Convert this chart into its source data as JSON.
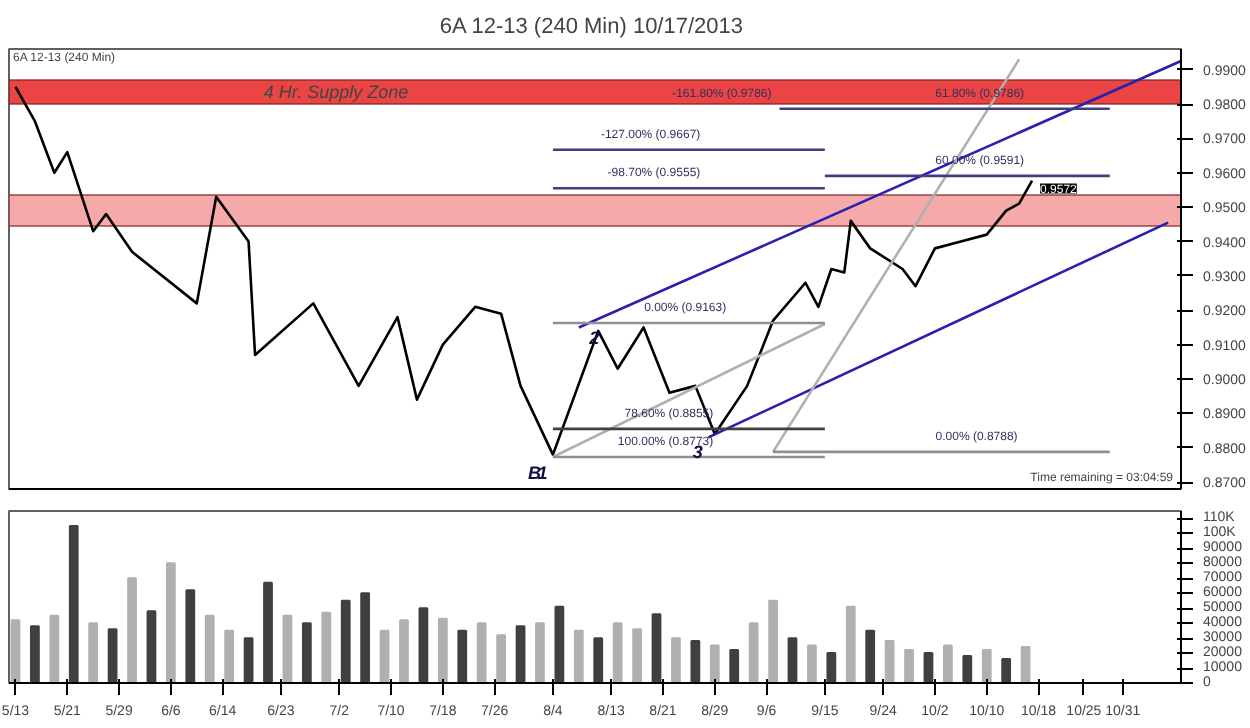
{
  "chart_data": [
    {
      "type": "line",
      "title": "6A 12-13 (240 Min)  10/17/2013",
      "xlim": [
        "2013-05-12",
        "2013-11-09"
      ],
      "ylim": [
        0.868,
        0.996
      ],
      "xticks": [
        {
          "value": "2013-05-13",
          "label": null
        },
        {
          "value": "2013-05-21",
          "label": null
        },
        {
          "value": "2013-05-29",
          "label": null
        },
        {
          "value": "2013-06-06",
          "label": null
        },
        {
          "value": "2013-06-14",
          "label": null
        },
        {
          "value": "2013-06-23",
          "label": null
        },
        {
          "value": "2013-07-02",
          "label": null
        },
        {
          "value": "2013-07-10",
          "label": null
        },
        {
          "value": "2013-07-18",
          "label": null
        },
        {
          "value": "2013-07-26",
          "label": null
        },
        {
          "value": "2013-08-04",
          "label": null
        },
        {
          "value": "2013-08-13",
          "label": null
        },
        {
          "value": "2013-08-21",
          "label": null
        },
        {
          "value": "2013-08-29",
          "label": null
        },
        {
          "value": "2013-09-06",
          "label": null
        },
        {
          "value": "2013-09-15",
          "label": null
        },
        {
          "value": "2013-09-24",
          "label": null
        },
        {
          "value": "2013-10-02",
          "label": null
        },
        {
          "value": "2013-10-10",
          "label": null
        },
        {
          "value": "2013-10-18",
          "label": null
        },
        {
          "value": "2013-10-25",
          "label": null
        },
        {
          "value": "2013-10-31",
          "label": null
        }
      ],
      "yticks": [
        {
          "value": 0.87,
          "label": "0.8700"
        },
        {
          "value": 0.88,
          "label": "0.8800"
        },
        {
          "value": 0.89,
          "label": "0.8900"
        },
        {
          "value": 0.9,
          "label": "0.9000"
        },
        {
          "value": 0.91,
          "label": "0.9100"
        },
        {
          "value": 0.92,
          "label": "0.9200"
        },
        {
          "value": 0.93,
          "label": "0.9300"
        },
        {
          "value": 0.94,
          "label": "0.9400"
        },
        {
          "value": 0.95,
          "label": "0.9500"
        },
        {
          "value": 0.96,
          "label": "0.9600"
        },
        {
          "value": 0.97,
          "label": "0.9700"
        },
        {
          "value": 0.98,
          "label": "0.9800"
        },
        {
          "value": 0.99,
          "label": "0.9900"
        }
      ],
      "tick_labels": "y",
      "bands": [
        {
          "axis": "y",
          "from": 0.98,
          "to": 0.987,
          "label": "4 Hr. Supply Zone",
          "color": "#e83030"
        },
        {
          "axis": "y",
          "from": 0.9445,
          "to": 0.9535,
          "label": null,
          "color": "#f4a0a0"
        }
      ],
      "series": [
        {
          "type": "line",
          "color": "#000000",
          "x": [
            "2013-05-13",
            "2013-05-16",
            "2013-05-19",
            "2013-05-21",
            "2013-05-25",
            "2013-05-27",
            "2013-05-31",
            "2013-06-10",
            "2013-06-13",
            "2013-06-18",
            "2013-06-19",
            "2013-06-28",
            "2013-07-05",
            "2013-07-11",
            "2013-07-14",
            "2013-07-18",
            "2013-07-23",
            "2013-07-27",
            "2013-07-30",
            "2013-08-04",
            "2013-08-11",
            "2013-08-14",
            "2013-08-18",
            "2013-08-22",
            "2013-08-26",
            "2013-08-29",
            "2013-09-03",
            "2013-09-07",
            "2013-09-12",
            "2013-09-14",
            "2013-09-16",
            "2013-09-18",
            "2013-09-19",
            "2013-09-22",
            "2013-09-27",
            "2013-09-29",
            "2013-10-02",
            "2013-10-06",
            "2013-10-10",
            "2013-10-13",
            "2013-10-15",
            "2013-10-17"
          ],
          "values": [
            0.985,
            0.975,
            0.96,
            0.966,
            0.943,
            0.948,
            0.937,
            0.922,
            0.953,
            0.94,
            0.907,
            0.922,
            0.898,
            0.918,
            0.894,
            0.91,
            0.921,
            0.919,
            0.898,
            0.878,
            0.914,
            0.903,
            0.915,
            0.896,
            0.898,
            0.884,
            0.898,
            0.917,
            0.928,
            0.921,
            0.932,
            0.931,
            0.946,
            0.938,
            0.932,
            0.927,
            0.938,
            0.94,
            0.942,
            0.949,
            0.951,
            0.9577
          ]
        },
        {
          "type": "line",
          "color": "#2a1fb0",
          "x": [
            "2013-08-08",
            "2013-11-09"
          ],
          "values": [
            0.915,
            0.9925
          ]
        },
        {
          "type": "line",
          "color": "#2a1fb0",
          "x": [
            "2013-08-28",
            "2013-11-07"
          ],
          "values": [
            0.883,
            0.9455
          ]
        },
        {
          "type": "line",
          "color": "#b0b0b0",
          "x": [
            "2013-09-07",
            "2013-10-15"
          ],
          "values": [
            0.8788,
            0.993
          ]
        },
        {
          "type": "line",
          "color": "#b0b0b0",
          "x": [
            "2013-08-04",
            "2013-09-15"
          ],
          "values": [
            0.8773,
            0.916
          ]
        },
        {
          "type": "line",
          "color": "#404080",
          "x": [
            "2013-09-08",
            "2013-10-29"
          ],
          "values": [
            0.9786,
            0.9786
          ]
        },
        {
          "type": "line",
          "color": "#404080",
          "x": [
            "2013-08-04",
            "2013-09-15"
          ],
          "values": [
            0.9667,
            0.9667
          ]
        },
        {
          "type": "line",
          "color": "#404080",
          "x": [
            "2013-08-04",
            "2013-09-15"
          ],
          "values": [
            0.9555,
            0.9555
          ]
        },
        {
          "type": "line",
          "color": "#404080",
          "x": [
            "2013-09-15",
            "2013-10-29"
          ],
          "values": [
            0.9591,
            0.9591
          ]
        },
        {
          "type": "line",
          "color": "#909090",
          "x": [
            "2013-08-04",
            "2013-09-15"
          ],
          "values": [
            0.9163,
            0.9163
          ]
        },
        {
          "type": "line",
          "color": "#404040",
          "x": [
            "2013-08-04",
            "2013-09-15"
          ],
          "values": [
            0.8855,
            0.8855
          ]
        },
        {
          "type": "line",
          "color": "#909090",
          "x": [
            "2013-08-04",
            "2013-09-15"
          ],
          "values": [
            0.8773,
            0.8773
          ]
        },
        {
          "type": "line",
          "color": "#909090",
          "x": [
            "2013-09-07",
            "2013-10-29"
          ],
          "values": [
            0.8788,
            0.8788
          ]
        }
      ],
      "annotations": [
        "6A 12-13 (240 Min)",
        "Time remaining = 03:04:59",
        {
          "text": "-161.80% (0.9786)",
          "x": "2013-09-08",
          "y": 0.9786
        },
        {
          "text": "61.80% (0.9786)",
          "x": "2013-10-17",
          "y": 0.9786
        },
        {
          "text": "-127.00% (0.9667)",
          "x": "2013-08-28",
          "y": 0.9667
        },
        {
          "text": "-98.70% (0.9555)",
          "x": "2013-08-28",
          "y": 0.9555
        },
        {
          "text": "60.00% (0.9591)",
          "x": "2013-10-17",
          "y": 0.9591
        },
        {
          "text": "0.00% (0.9163)",
          "x": "2013-09-01",
          "y": 0.9163
        },
        {
          "text": "78.60% (0.8855)",
          "x": "2013-08-30",
          "y": 0.8855
        },
        {
          "text": "100.00% (0.8773)",
          "x": "2013-08-30",
          "y": 0.8773
        },
        {
          "text": "0.00% (0.8788)",
          "x": "2013-10-16",
          "y": 0.8788
        },
        {
          "text": "B",
          "x": "2013-08-04",
          "y": 0.878
        },
        {
          "text": "1",
          "x": "2013-08-05",
          "y": 0.8773
        },
        {
          "text": "2",
          "x": "2013-08-13",
          "y": 0.9165
        },
        {
          "text": "3",
          "x": "2013-08-29",
          "y": 0.8835
        },
        {
          "text": "0.9572",
          "x": "2013-10-17",
          "y": 0.9572
        }
      ]
    },
    {
      "type": "bar",
      "xlim": [
        "2013-05-12",
        "2013-11-09"
      ],
      "ylim": [
        0,
        115000
      ],
      "xticks": [
        {
          "value": "2013-05-13",
          "label": "5/13"
        },
        {
          "value": "2013-05-21",
          "label": "5/21"
        },
        {
          "value": "2013-05-29",
          "label": "5/29"
        },
        {
          "value": "2013-06-06",
          "label": "6/6"
        },
        {
          "value": "2013-06-14",
          "label": "6/14"
        },
        {
          "value": "2013-06-23",
          "label": "6/23"
        },
        {
          "value": "2013-07-02",
          "label": "7/2"
        },
        {
          "value": "2013-07-10",
          "label": "7/10"
        },
        {
          "value": "2013-07-18",
          "label": "7/18"
        },
        {
          "value": "2013-07-26",
          "label": "7/26"
        },
        {
          "value": "2013-08-04",
          "label": "8/4"
        },
        {
          "value": "2013-08-13",
          "label": "8/13"
        },
        {
          "value": "2013-08-21",
          "label": "8/21"
        },
        {
          "value": "2013-08-29",
          "label": "8/29"
        },
        {
          "value": "2013-09-06",
          "label": "9/6"
        },
        {
          "value": "2013-09-15",
          "label": "9/15"
        },
        {
          "value": "2013-09-24",
          "label": "9/24"
        },
        {
          "value": "2013-10-02",
          "label": "10/2"
        },
        {
          "value": "2013-10-10",
          "label": "10/10"
        },
        {
          "value": "2013-10-18",
          "label": "10/18"
        },
        {
          "value": "2013-10-25",
          "label": "10/25"
        },
        {
          "value": "2013-10-31",
          "label": "10/31"
        }
      ],
      "yticks": [
        0,
        10000,
        20000,
        30000,
        40000,
        50000,
        60000,
        70000,
        80000,
        90000,
        {
          "value": 100000,
          "label": "100K"
        },
        {
          "value": 110000,
          "label": "110K"
        }
      ],
      "x": [
        "2013-05-13",
        "2013-05-16",
        "2013-05-19",
        "2013-05-22",
        "2013-05-25",
        "2013-05-28",
        "2013-05-31",
        "2013-06-03",
        "2013-06-06",
        "2013-06-09",
        "2013-06-12",
        "2013-06-15",
        "2013-06-18",
        "2013-06-21",
        "2013-06-24",
        "2013-06-27",
        "2013-06-30",
        "2013-07-03",
        "2013-07-06",
        "2013-07-09",
        "2013-07-12",
        "2013-07-15",
        "2013-07-18",
        "2013-07-21",
        "2013-07-24",
        "2013-07-27",
        "2013-07-30",
        "2013-08-02",
        "2013-08-05",
        "2013-08-08",
        "2013-08-11",
        "2013-08-14",
        "2013-08-17",
        "2013-08-20",
        "2013-08-23",
        "2013-08-26",
        "2013-08-29",
        "2013-09-01",
        "2013-09-04",
        "2013-09-07",
        "2013-09-10",
        "2013-09-13",
        "2013-09-16",
        "2013-09-19",
        "2013-09-22",
        "2013-09-25",
        "2013-09-28",
        "2013-10-01",
        "2013-10-04",
        "2013-10-07",
        "2013-10-10",
        "2013-10-13",
        "2013-10-16"
      ],
      "values": [
        42000,
        38000,
        45000,
        105000,
        40000,
        36000,
        70000,
        48000,
        80000,
        62000,
        45000,
        35000,
        30000,
        67000,
        45000,
        40000,
        47000,
        55000,
        60000,
        35000,
        42000,
        50000,
        43000,
        35000,
        40000,
        32000,
        38000,
        40000,
        51000,
        35000,
        30000,
        40000,
        36000,
        46000,
        30000,
        28000,
        25000,
        22000,
        40000,
        55000,
        30000,
        25000,
        20000,
        51000,
        35000,
        28000,
        22000,
        20000,
        25000,
        18000,
        22000,
        16000,
        24000
      ],
      "colors": [
        "#b0b0b0",
        "#404040",
        "#b0b0b0",
        "#404040",
        "#b0b0b0",
        "#404040",
        "#b0b0b0",
        "#404040",
        "#b0b0b0",
        "#404040",
        "#b0b0b0",
        "#b0b0b0",
        "#404040",
        "#404040",
        "#b0b0b0",
        "#404040",
        "#b0b0b0",
        "#404040",
        "#404040",
        "#b0b0b0",
        "#b0b0b0",
        "#404040",
        "#b0b0b0",
        "#404040",
        "#b0b0b0",
        "#b0b0b0",
        "#404040",
        "#b0b0b0",
        "#404040",
        "#b0b0b0",
        "#404040",
        "#b0b0b0",
        "#b0b0b0",
        "#404040",
        "#b0b0b0",
        "#404040",
        "#b0b0b0",
        "#404040",
        "#b0b0b0",
        "#b0b0b0",
        "#404040",
        "#b0b0b0",
        "#404040",
        "#b0b0b0",
        "#404040",
        "#b0b0b0",
        "#b0b0b0",
        "#404040",
        "#b0b0b0",
        "#404040",
        "#b0b0b0",
        "#404040",
        "#b0b0b0"
      ]
    }
  ]
}
